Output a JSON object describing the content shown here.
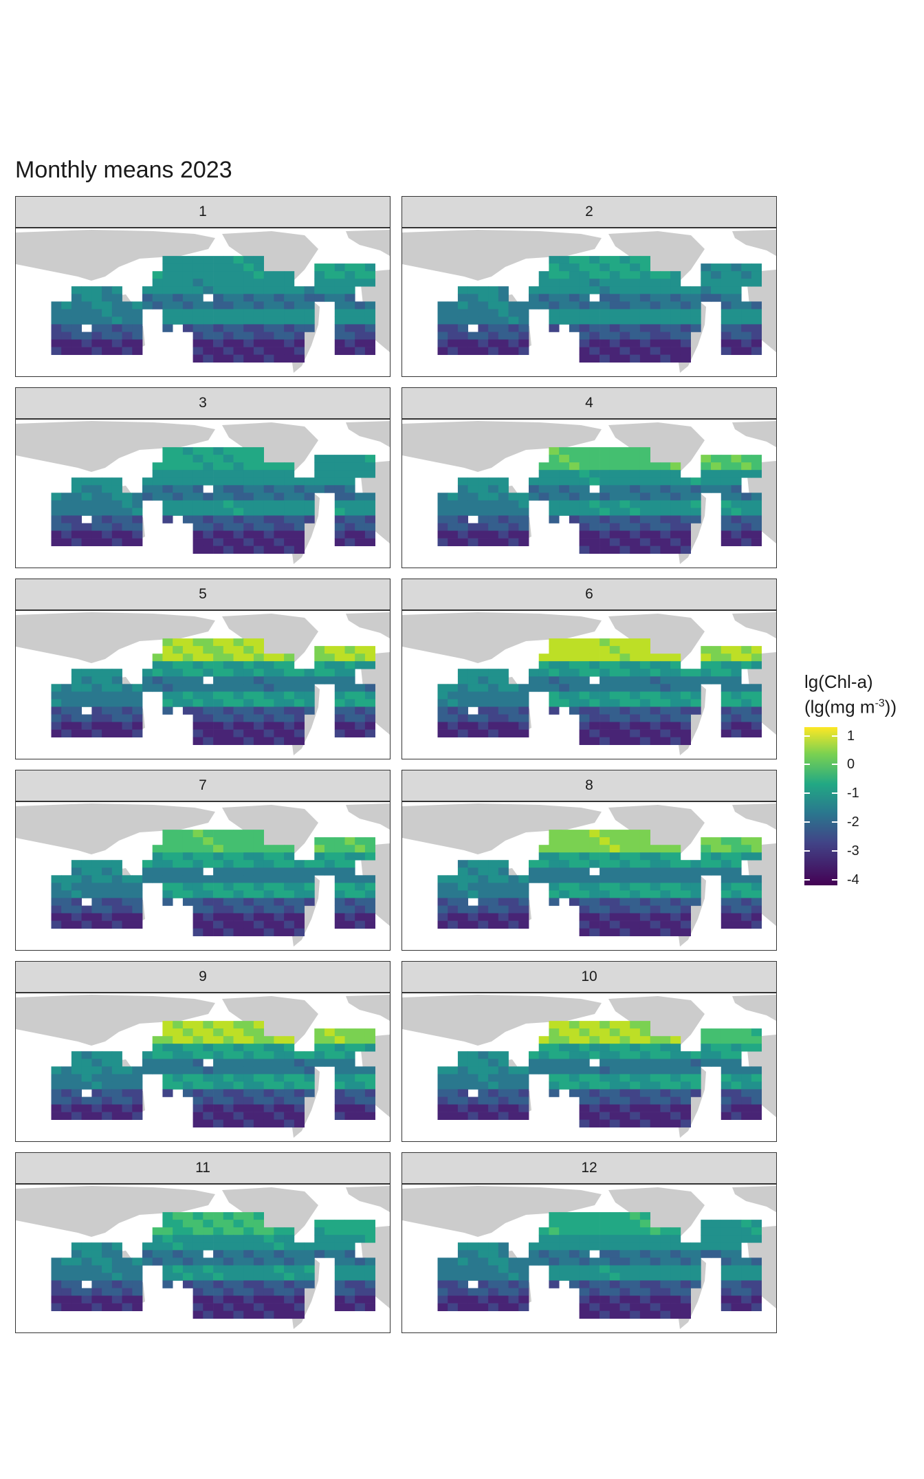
{
  "title": "Monthly means 2023",
  "panels": [
    {
      "label": "1",
      "atl_north": 0.55,
      "pac_north": 0.5,
      "sub": 0.15
    },
    {
      "label": "2",
      "atl_north": 0.45,
      "pac_north": 0.55,
      "sub": 0.15
    },
    {
      "label": "3",
      "atl_north": 0.5,
      "pac_north": 0.58,
      "sub": 0.18
    },
    {
      "label": "4",
      "atl_north": 0.72,
      "pac_north": 0.7,
      "sub": 0.22
    },
    {
      "label": "5",
      "atl_north": 0.85,
      "pac_north": 0.85,
      "sub": 0.3
    },
    {
      "label": "6",
      "atl_north": 0.85,
      "pac_north": 0.88,
      "sub": 0.32
    },
    {
      "label": "7",
      "atl_north": 0.72,
      "pac_north": 0.7,
      "sub": 0.35
    },
    {
      "label": "8",
      "atl_north": 0.75,
      "pac_north": 0.8,
      "sub": 0.35
    },
    {
      "label": "9",
      "atl_north": 0.8,
      "pac_north": 0.85,
      "sub": 0.33
    },
    {
      "label": "10",
      "atl_north": 0.68,
      "pac_north": 0.85,
      "sub": 0.3
    },
    {
      "label": "11",
      "atl_north": 0.58,
      "pac_north": 0.65,
      "sub": 0.2
    },
    {
      "label": "12",
      "atl_north": 0.5,
      "pac_north": 0.6,
      "sub": 0.18
    }
  ],
  "legend": {
    "title_line1": "lg(Chl-a)",
    "title_line2_pre": "(lg(mg m",
    "title_line2_sup": "-3",
    "title_line2_post": "))",
    "ticks": [
      "1",
      "0",
      "-1",
      "-2",
      "-3",
      "-4"
    ],
    "range": [
      -4.2,
      1.3
    ]
  },
  "colors": {
    "land": "#cccccc",
    "viridis": [
      "#440154",
      "#482475",
      "#414487",
      "#355f8d",
      "#2a788e",
      "#21918c",
      "#22a884",
      "#44bf70",
      "#7ad151",
      "#bddf26",
      "#fde725"
    ]
  }
}
